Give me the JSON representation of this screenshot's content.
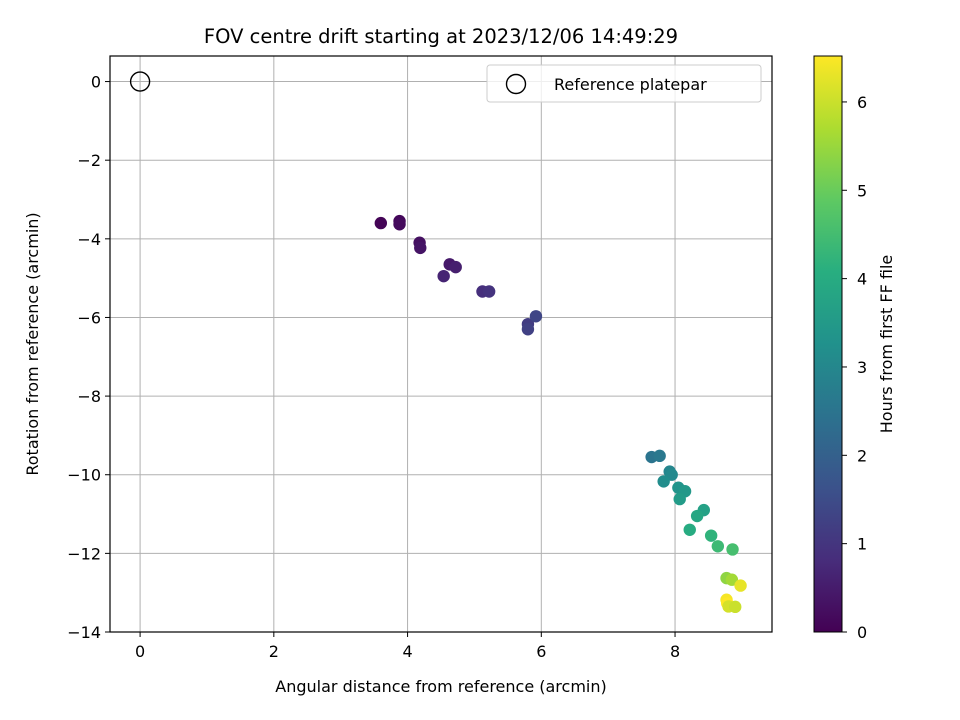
{
  "chart_data": {
    "type": "scatter",
    "title": "FOV centre drift starting at 2023/12/06 14:49:29",
    "xlabel": "Angular distance from reference (arcmin)",
    "ylabel": "Rotation from reference (arcmin)",
    "xlim": [
      -0.45,
      9.45
    ],
    "ylim": [
      -14.0,
      0.65
    ],
    "xticks": [
      0,
      2,
      4,
      6,
      8
    ],
    "yticks": [
      0,
      -2,
      -4,
      -6,
      -8,
      -10,
      -12,
      -14
    ],
    "xtick_labels": [
      "0",
      "2",
      "4",
      "6",
      "8"
    ],
    "ytick_labels": [
      "0",
      "−2",
      "−4",
      "−6",
      "−8",
      "−10",
      "−12",
      "−14"
    ],
    "grid": true,
    "legend": {
      "position": "top-right",
      "entries": [
        "Reference platepar"
      ]
    },
    "reference_point": {
      "x": 0,
      "y": 0,
      "label": "Reference platepar"
    },
    "colorbar": {
      "label": "Hours from first FF file",
      "range": [
        0,
        6.52
      ],
      "ticks": [
        0,
        1,
        2,
        3,
        4,
        5,
        6
      ],
      "tick_labels": [
        "0",
        "1",
        "2",
        "3",
        "4",
        "5",
        "6"
      ],
      "colormap": "viridis"
    },
    "points": [
      {
        "x": 3.6,
        "y": -3.6,
        "c": 0.05
      },
      {
        "x": 3.88,
        "y": -3.55,
        "c": 0.12
      },
      {
        "x": 3.88,
        "y": -3.63,
        "c": 0.18
      },
      {
        "x": 4.18,
        "y": -4.1,
        "c": 0.28
      },
      {
        "x": 4.19,
        "y": -4.23,
        "c": 0.35
      },
      {
        "x": 4.63,
        "y": -4.65,
        "c": 0.45
      },
      {
        "x": 4.72,
        "y": -4.72,
        "c": 0.55
      },
      {
        "x": 4.54,
        "y": -4.95,
        "c": 0.65
      },
      {
        "x": 5.12,
        "y": -5.34,
        "c": 0.85
      },
      {
        "x": 5.22,
        "y": -5.34,
        "c": 0.95
      },
      {
        "x": 5.8,
        "y": -6.17,
        "c": 1.15
      },
      {
        "x": 5.8,
        "y": -6.3,
        "c": 1.25
      },
      {
        "x": 5.92,
        "y": -5.97,
        "c": 1.35
      },
      {
        "x": 7.65,
        "y": -9.55,
        "c": 2.5
      },
      {
        "x": 7.77,
        "y": -9.52,
        "c": 2.6
      },
      {
        "x": 7.92,
        "y": -9.92,
        "c": 2.95
      },
      {
        "x": 7.95,
        "y": -10.0,
        "c": 3.05
      },
      {
        "x": 7.83,
        "y": -10.17,
        "c": 3.15
      },
      {
        "x": 8.05,
        "y": -10.33,
        "c": 3.35
      },
      {
        "x": 8.15,
        "y": -10.42,
        "c": 3.45
      },
      {
        "x": 8.07,
        "y": -10.62,
        "c": 3.55
      },
      {
        "x": 8.43,
        "y": -10.9,
        "c": 3.7
      },
      {
        "x": 8.33,
        "y": -11.05,
        "c": 3.85
      },
      {
        "x": 8.22,
        "y": -11.4,
        "c": 4.0
      },
      {
        "x": 8.54,
        "y": -11.55,
        "c": 4.2
      },
      {
        "x": 8.64,
        "y": -11.82,
        "c": 4.4
      },
      {
        "x": 8.86,
        "y": -11.9,
        "c": 4.55
      },
      {
        "x": 8.77,
        "y": -12.63,
        "c": 5.4
      },
      {
        "x": 8.85,
        "y": -12.67,
        "c": 5.6
      },
      {
        "x": 8.98,
        "y": -12.82,
        "c": 6.3
      },
      {
        "x": 8.77,
        "y": -13.18,
        "c": 6.45
      },
      {
        "x": 8.78,
        "y": -13.27,
        "c": 6.52
      },
      {
        "x": 8.8,
        "y": -13.35,
        "c": 6.1
      },
      {
        "x": 8.9,
        "y": -13.36,
        "c": 6.0
      }
    ]
  }
}
